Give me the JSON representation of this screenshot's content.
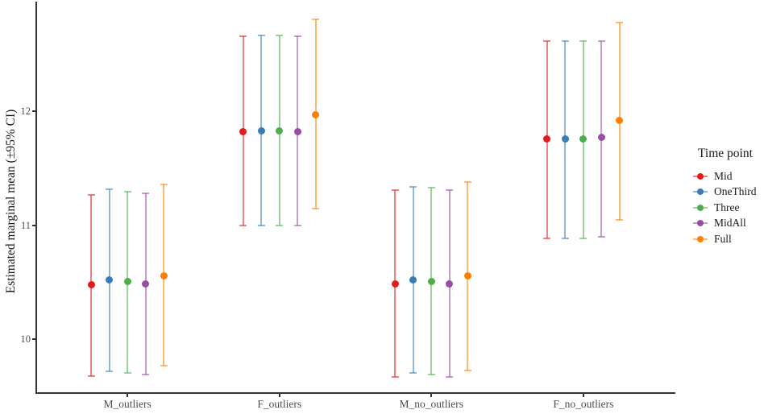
{
  "figure": {
    "background": "#ffffff",
    "axis_color": "#333333",
    "tick_text_color": "#4d4d4d"
  },
  "chart_data": {
    "type": "scatter",
    "subtype": "point-with-95ci-error-bars",
    "title": "",
    "xlabel": "",
    "ylabel": "Estimated marginal mean (±95% CI)",
    "categories": [
      "M_outliers",
      "F_outliers",
      "M_no_outliers",
      "F_no_outliers"
    ],
    "yticks": [
      12,
      11,
      10
    ],
    "ylim": [
      9.53,
      12.95
    ],
    "grid": false,
    "legend_title": "Time point",
    "legend_position": "right",
    "series": [
      {
        "name": "Mid",
        "color": "#E41A1C",
        "means": [
          10.48,
          11.82,
          10.49,
          11.76
        ],
        "ci_low": [
          9.68,
          11.0,
          9.67,
          10.89
        ],
        "ci_high": [
          11.27,
          12.66,
          11.31,
          12.62
        ]
      },
      {
        "name": "OneThird",
        "color": "#377EB8",
        "means": [
          10.52,
          11.83,
          10.52,
          11.76
        ],
        "ci_low": [
          9.72,
          11.0,
          9.71,
          10.89
        ],
        "ci_high": [
          11.32,
          12.67,
          11.34,
          12.62
        ]
      },
      {
        "name": "Three",
        "color": "#4DAF4A",
        "means": [
          10.51,
          11.83,
          10.51,
          11.76
        ],
        "ci_low": [
          9.71,
          11.0,
          9.69,
          10.89
        ],
        "ci_high": [
          11.3,
          12.67,
          11.33,
          12.62
        ]
      },
      {
        "name": "MidAll",
        "color": "#984EA3",
        "means": [
          10.49,
          11.82,
          10.49,
          11.77
        ],
        "ci_low": [
          9.69,
          11.0,
          9.67,
          10.9
        ],
        "ci_high": [
          11.28,
          12.66,
          11.31,
          12.62
        ]
      },
      {
        "name": "Full",
        "color": "#FF7F00",
        "means": [
          10.56,
          11.97,
          10.56,
          11.92
        ],
        "ci_low": [
          9.77,
          11.15,
          9.73,
          11.05
        ],
        "ci_high": [
          11.36,
          12.81,
          11.38,
          12.78
        ]
      }
    ]
  }
}
